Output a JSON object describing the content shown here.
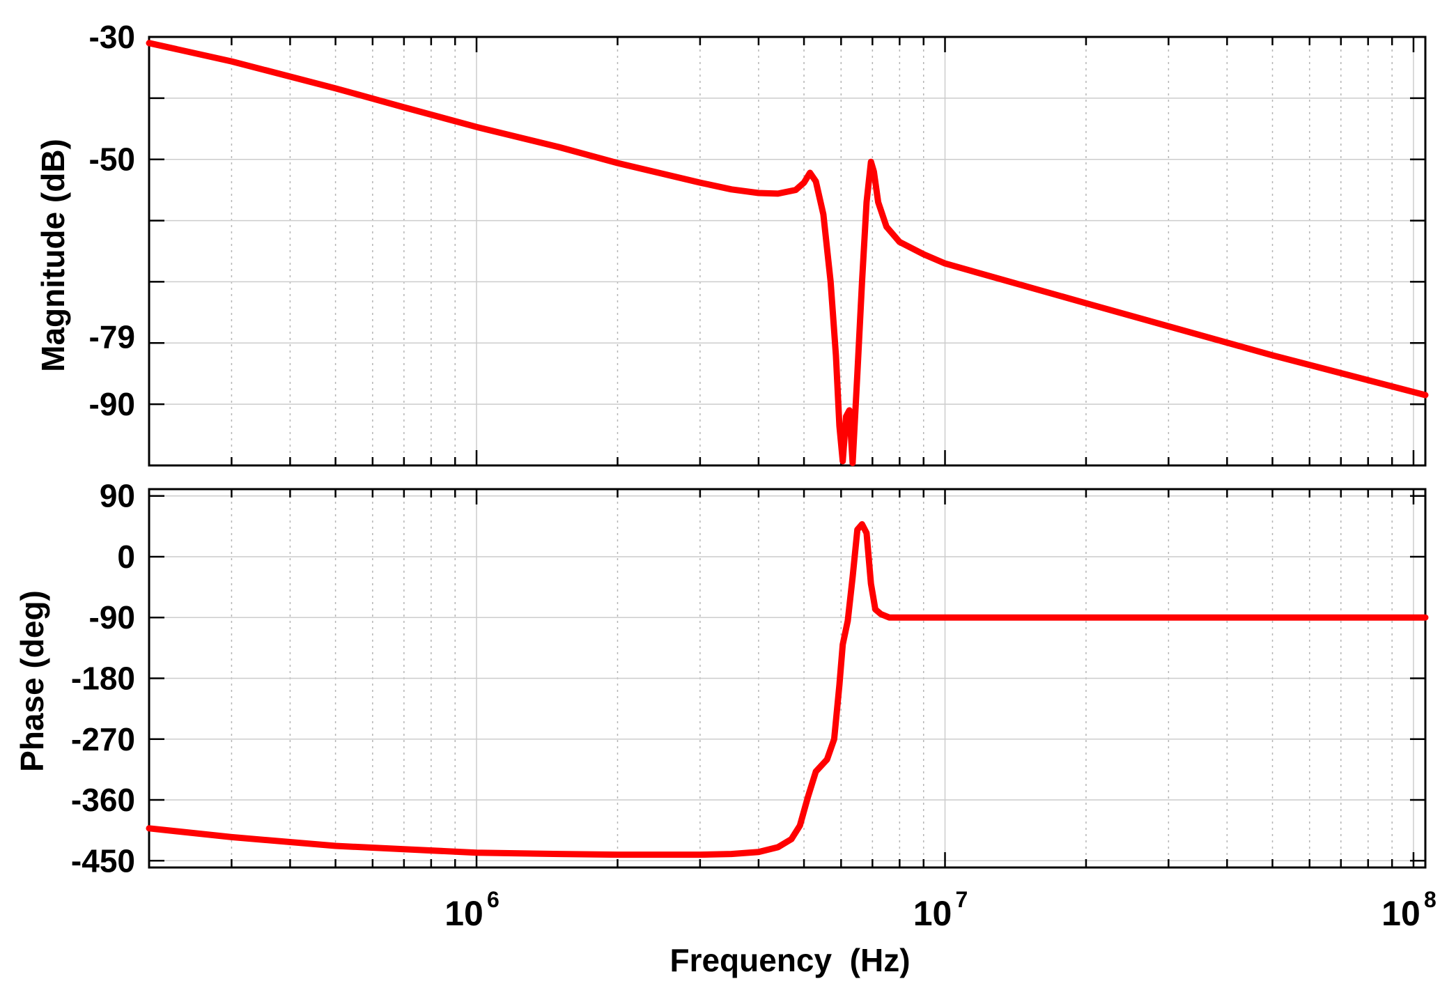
{
  "colors": {
    "background": "#ffffff",
    "trace": "#ff0000",
    "axis": "#000000",
    "grid_major": "#cccccc",
    "grid_minor": "#b4b4b4"
  },
  "chart_data": [
    {
      "type": "line",
      "panel": "magnitude",
      "title": "",
      "xlabel": "",
      "ylabel": "Magnitude (dB)",
      "xscale": "log",
      "xlim": [
        200000,
        106000000
      ],
      "ylim": [
        -100,
        -30
      ],
      "yticks": [
        -30,
        -50,
        -79,
        -90
      ],
      "ytick_labels": [
        "-30",
        "-50",
        "-79",
        "-90"
      ],
      "ygrid_values": [
        -30,
        -40,
        -50,
        -60,
        -70,
        -80,
        -90,
        -100
      ],
      "grid": true,
      "legend": "none",
      "series": [
        {
          "color": "#ff0000",
          "x": [
            200000,
            300000,
            500000,
            700000,
            1000000,
            1500000,
            2000000,
            3000000,
            3500000,
            4000000,
            4400000,
            4800000,
            5000000,
            5150000,
            5300000,
            5500000,
            5700000,
            5850000,
            5950000,
            6050000,
            6150000,
            6250000,
            6350000,
            6500000,
            6650000,
            6800000,
            6950000,
            7050000,
            7200000,
            7500000,
            8000000,
            9000000,
            10000000,
            20000000,
            50000000,
            106000000
          ],
          "y": [
            -31,
            -34,
            -38.4,
            -41.5,
            -44.7,
            -48,
            -50.6,
            -53.8,
            -54.9,
            -55.5,
            -55.6,
            -55,
            -53.8,
            -52.2,
            -53.6,
            -59,
            -70,
            -82,
            -93.5,
            -99.3,
            -92,
            -91,
            -99.6,
            -85,
            -70,
            -57,
            -50.4,
            -52,
            -57,
            -61,
            -63.5,
            -65.5,
            -67,
            -73.5,
            -82,
            -88.5
          ]
        }
      ]
    },
    {
      "type": "line",
      "panel": "phase",
      "title": "",
      "xlabel": "Frequency  (Hz)",
      "ylabel": "Phase (deg)",
      "xscale": "log",
      "xlim": [
        200000,
        106000000
      ],
      "ylim": [
        -460,
        100
      ],
      "yticks": [
        90,
        0,
        -90,
        -180,
        -270,
        -360,
        -450
      ],
      "ytick_labels": [
        "90",
        "0",
        "-90",
        "-180",
        "-270",
        "-360",
        "-450"
      ],
      "xtick_values": [
        1000000,
        10000000,
        100000000
      ],
      "xtick_bases": [
        "10",
        "10",
        "10"
      ],
      "xtick_exponents": [
        "6",
        "7",
        "8"
      ],
      "grid": true,
      "legend": "none",
      "series": [
        {
          "color": "#ff0000",
          "x": [
            200000,
            300000,
            500000,
            700000,
            1000000,
            1500000,
            2000000,
            3000000,
            3500000,
            4000000,
            4400000,
            4700000,
            4900000,
            5100000,
            5300000,
            5600000,
            5800000,
            5950000,
            6050000,
            6200000,
            6350000,
            6500000,
            6650000,
            6800000,
            6950000,
            7100000,
            7300000,
            7600000,
            8000000,
            9000000,
            10000000,
            20000000,
            50000000,
            106000000
          ],
          "y": [
            -402,
            -415,
            -428,
            -433,
            -438,
            -440,
            -441,
            -441,
            -440,
            -437,
            -430,
            -418,
            -398,
            -355,
            -318,
            -300,
            -270,
            -190,
            -130,
            -95,
            -30,
            40,
            48,
            35,
            -40,
            -78,
            -85,
            -90,
            -90,
            -90,
            -90,
            -90,
            -90,
            -90
          ]
        }
      ]
    }
  ]
}
